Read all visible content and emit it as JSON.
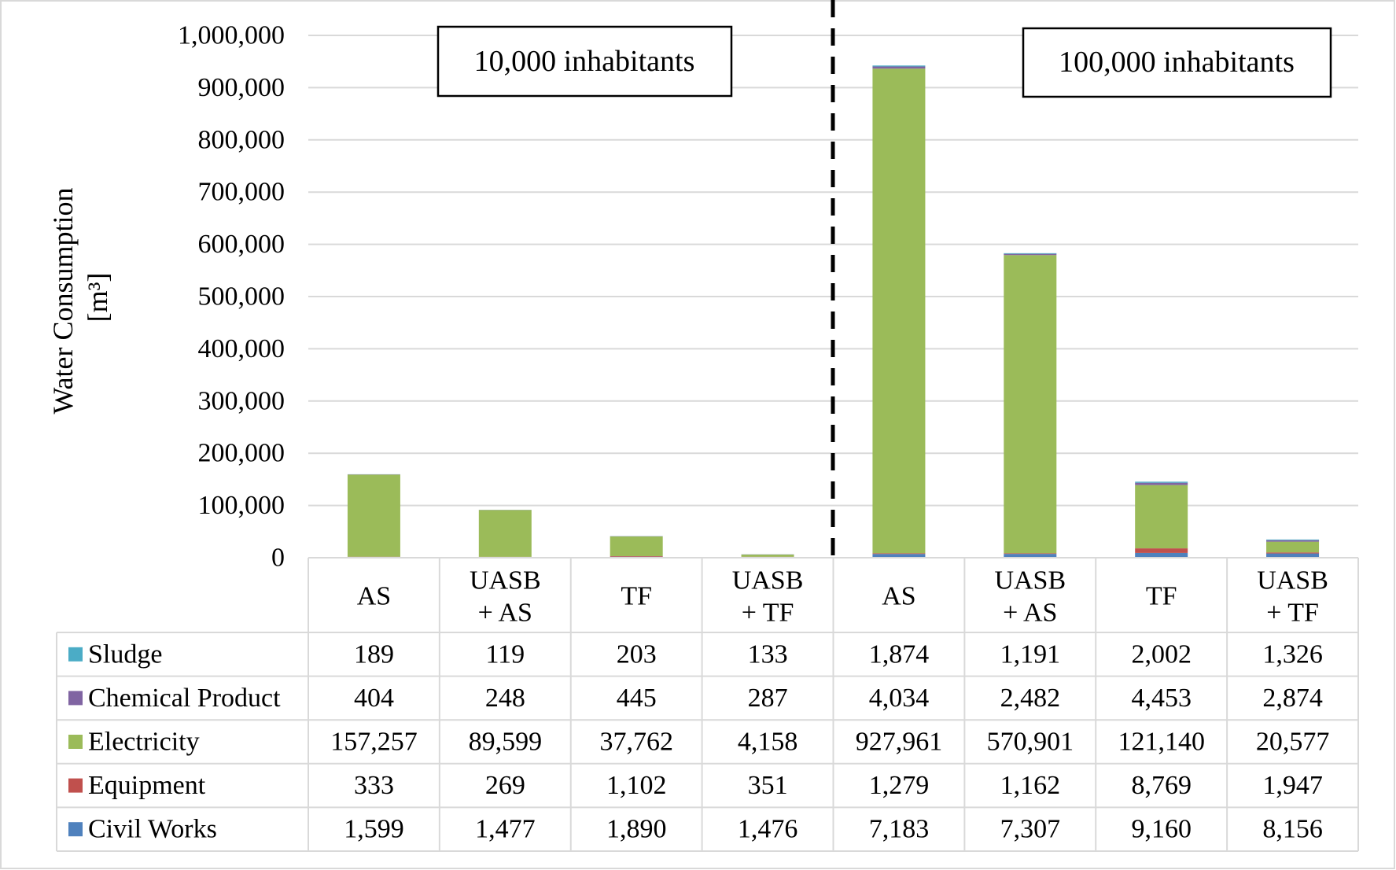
{
  "chart_data": {
    "type": "bar",
    "stacked": true,
    "ylabel_line1": "Water Consumption",
    "ylabel_line2": "[m³]",
    "ylim": [
      0,
      1000000
    ],
    "yticks": [
      0,
      100000,
      200000,
      300000,
      400000,
      500000,
      600000,
      700000,
      800000,
      900000,
      1000000
    ],
    "ytick_labels": [
      "0",
      "100,000",
      "200,000",
      "300,000",
      "400,000",
      "500,000",
      "600,000",
      "700,000",
      "800,000",
      "900,000",
      "1,000,000"
    ],
    "grid": true,
    "groups": [
      {
        "label": "10,000 inhabitants"
      },
      {
        "label": "100,000 inhabitants"
      }
    ],
    "categories": [
      {
        "line1": "AS",
        "line2": ""
      },
      {
        "line1": "UASB",
        "line2": "+ AS"
      },
      {
        "line1": "TF",
        "line2": ""
      },
      {
        "line1": "UASB",
        "line2": "+ TF"
      },
      {
        "line1": "AS",
        "line2": ""
      },
      {
        "line1": "UASB",
        "line2": "+ AS"
      },
      {
        "line1": "TF",
        "line2": ""
      },
      {
        "line1": "UASB",
        "line2": "+ TF"
      }
    ],
    "series": [
      {
        "name": "Sludge",
        "color": "#4bacc6",
        "values": [
          189,
          119,
          203,
          133,
          1874,
          1191,
          2002,
          1326
        ],
        "labels": [
          "189",
          "119",
          "203",
          "133",
          "1,874",
          "1,191",
          "2,002",
          "1,326"
        ]
      },
      {
        "name": "Chemical Product",
        "color": "#8064a2",
        "values": [
          404,
          248,
          445,
          287,
          4034,
          2482,
          4453,
          2874
        ],
        "labels": [
          "404",
          "248",
          "445",
          "287",
          "4,034",
          "2,482",
          "4,453",
          "2,874"
        ]
      },
      {
        "name": "Electricity",
        "color": "#9bbb59",
        "values": [
          157257,
          89599,
          37762,
          4158,
          927961,
          570901,
          121140,
          20577
        ],
        "labels": [
          "157,257",
          "89,599",
          "37,762",
          "4,158",
          "927,961",
          "570,901",
          "121,140",
          "20,577"
        ]
      },
      {
        "name": "Equipment",
        "color": "#c0504d",
        "values": [
          333,
          269,
          1102,
          351,
          1279,
          1162,
          8769,
          1947
        ],
        "labels": [
          "333",
          "269",
          "1,102",
          "351",
          "1,279",
          "1,162",
          "8,769",
          "1,947"
        ]
      },
      {
        "name": "Civil Works",
        "color": "#4f81bd",
        "values": [
          1599,
          1477,
          1890,
          1476,
          7183,
          7307,
          9160,
          8156
        ],
        "labels": [
          "1,599",
          "1,477",
          "1,890",
          "1,476",
          "7,183",
          "7,307",
          "9,160",
          "8,156"
        ]
      }
    ]
  }
}
